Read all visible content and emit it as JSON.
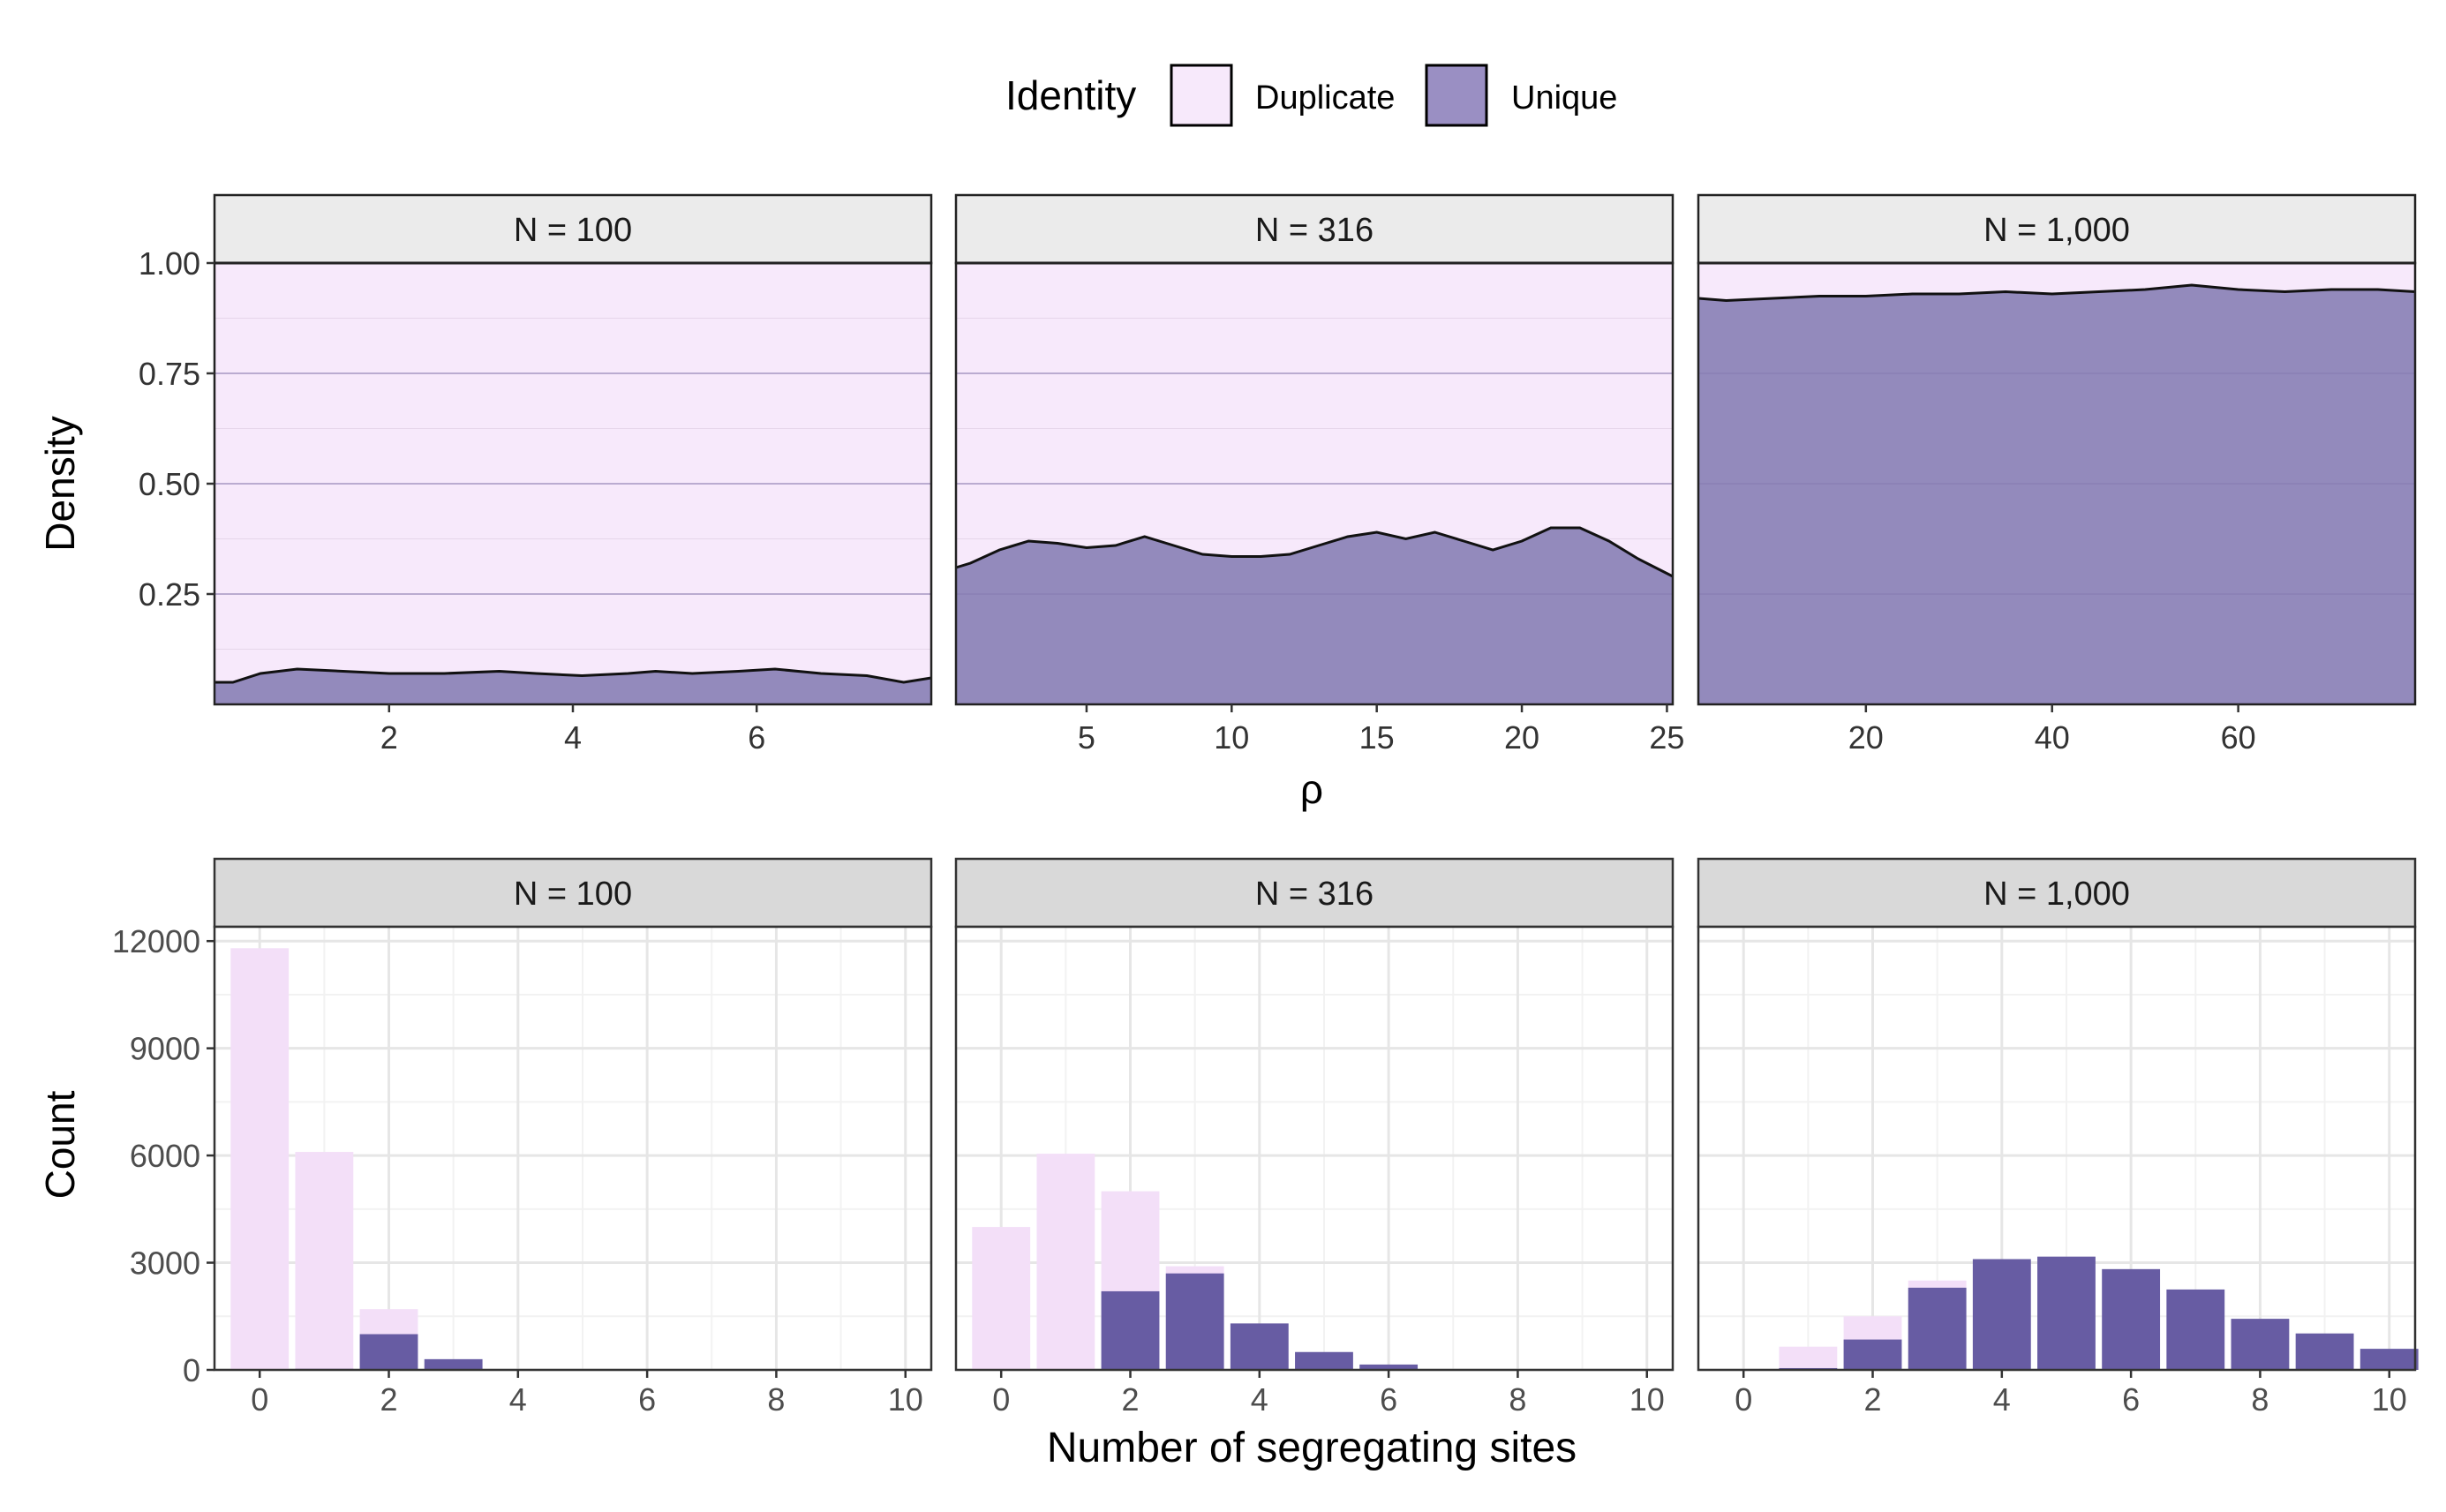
{
  "legend": {
    "title": "Identity",
    "items": [
      {
        "label": "Duplicate",
        "color": "#f7e9fb"
      },
      {
        "label": "Unique",
        "color": "#9a8fc3"
      }
    ]
  },
  "colors": {
    "duplicate_density": "#f7e9fb",
    "unique_density": "#938abc",
    "duplicate_bar": "#f3dff8",
    "unique_bar": "#675ca3",
    "strip_top": "#ebebeb",
    "strip_bottom": "#d9d9d9"
  },
  "chart_data": [
    {
      "type": "area",
      "subtype": "stacked-density",
      "ylabel": "Density",
      "xlabel": "ρ",
      "yticks": [
        0.25,
        0.5,
        0.75,
        1.0
      ],
      "ytick_labels": [
        "0.25",
        "0.50",
        "0.75",
        "1.00"
      ],
      "ylim": [
        0,
        1.0
      ],
      "facets": [
        {
          "strip": "N = 100",
          "xlim": [
            0.1,
            7.9
          ],
          "xticks": [
            2,
            4,
            6
          ],
          "xtick_labels": [
            "2",
            "4",
            "6"
          ],
          "series": [
            {
              "name": "Unique",
              "x": [
                0.1,
                0.3,
                0.6,
                1.0,
                1.5,
                2.0,
                2.6,
                3.2,
                3.6,
                4.1,
                4.6,
                4.9,
                5.3,
                5.8,
                6.2,
                6.7,
                7.2,
                7.6,
                7.9
              ],
              "y": [
                0.05,
                0.05,
                0.07,
                0.08,
                0.075,
                0.07,
                0.07,
                0.075,
                0.07,
                0.065,
                0.07,
                0.075,
                0.07,
                0.075,
                0.08,
                0.07,
                0.065,
                0.05,
                0.06
              ]
            },
            {
              "name": "Duplicate",
              "y_top": 1.0
            }
          ]
        },
        {
          "strip": "N = 316",
          "xlim": [
            0.5,
            25.2
          ],
          "xticks": [
            5,
            10,
            15,
            20,
            25
          ],
          "xtick_labels": [
            "5",
            "10",
            "15",
            "20",
            "25"
          ],
          "series": [
            {
              "name": "Unique",
              "x": [
                0.5,
                1.0,
                2.0,
                3.0,
                4.0,
                5.0,
                6.0,
                7.0,
                8.0,
                9.0,
                10.0,
                11.0,
                12.0,
                13.0,
                14.0,
                15.0,
                16.0,
                17.0,
                18.0,
                19.0,
                20.0,
                21.0,
                22.0,
                23.0,
                24.0,
                25.2
              ],
              "y": [
                0.31,
                0.32,
                0.35,
                0.37,
                0.365,
                0.355,
                0.36,
                0.38,
                0.36,
                0.34,
                0.335,
                0.335,
                0.34,
                0.36,
                0.38,
                0.39,
                0.375,
                0.39,
                0.37,
                0.35,
                0.37,
                0.4,
                0.4,
                0.37,
                0.33,
                0.29
              ]
            },
            {
              "name": "Duplicate",
              "y_top": 1.0
            }
          ]
        },
        {
          "strip": "N = 1,000",
          "xlim": [
            2,
            79
          ],
          "xticks": [
            20,
            40,
            60
          ],
          "xtick_labels": [
            "20",
            "40",
            "60"
          ],
          "series": [
            {
              "name": "Unique",
              "x": [
                2,
                5,
                10,
                15,
                20,
                25,
                30,
                35,
                40,
                45,
                50,
                55,
                60,
                65,
                70,
                75,
                79
              ],
              "y": [
                0.92,
                0.915,
                0.92,
                0.925,
                0.925,
                0.93,
                0.93,
                0.935,
                0.93,
                0.935,
                0.94,
                0.95,
                0.94,
                0.935,
                0.94,
                0.94,
                0.935
              ]
            },
            {
              "name": "Duplicate",
              "y_top": 1.0
            }
          ]
        }
      ]
    },
    {
      "type": "bar",
      "subtype": "overlapping-histogram",
      "ylabel": "Count",
      "xlabel": "Number of segregating sites",
      "ylim": [
        0,
        12400
      ],
      "yticks": [
        0,
        3000,
        6000,
        9000,
        12000
      ],
      "ytick_labels": [
        "0",
        "3000",
        "6000",
        "9000",
        "12000"
      ],
      "xlim": [
        -0.7,
        10.4
      ],
      "xticks": [
        0,
        2,
        4,
        6,
        8,
        10
      ],
      "xtick_labels": [
        "0",
        "2",
        "4",
        "6",
        "8",
        "10"
      ],
      "categories": [
        0,
        1,
        2,
        3,
        4,
        5,
        6,
        7,
        8,
        9,
        10
      ],
      "facets": [
        {
          "strip": "N = 100",
          "series": [
            {
              "name": "Duplicate",
              "values": [
                11800,
                6100,
                1700,
                120,
                0,
                0,
                0,
                0,
                0,
                0,
                0
              ]
            },
            {
              "name": "Unique",
              "values": [
                0,
                30,
                1000,
                300,
                0,
                0,
                0,
                0,
                0,
                0,
                0
              ]
            }
          ]
        },
        {
          "strip": "N = 316",
          "series": [
            {
              "name": "Duplicate",
              "values": [
                4000,
                6050,
                5000,
                2900,
                300,
                50,
                0,
                0,
                0,
                0,
                0
              ]
            },
            {
              "name": "Unique",
              "values": [
                0,
                0,
                2200,
                2700,
                1300,
                500,
                150,
                0,
                0,
                0,
                0
              ]
            }
          ]
        },
        {
          "strip": "N = 1,000",
          "series": [
            {
              "name": "Duplicate",
              "values": [
                0,
                650,
                1500,
                2500,
                0,
                0,
                0,
                0,
                0,
                0,
                0
              ]
            },
            {
              "name": "Unique",
              "values": [
                0,
                50,
                850,
                2300,
                3100,
                3170,
                2820,
                2250,
                1430,
                1020,
                590
              ]
            }
          ]
        }
      ]
    }
  ]
}
